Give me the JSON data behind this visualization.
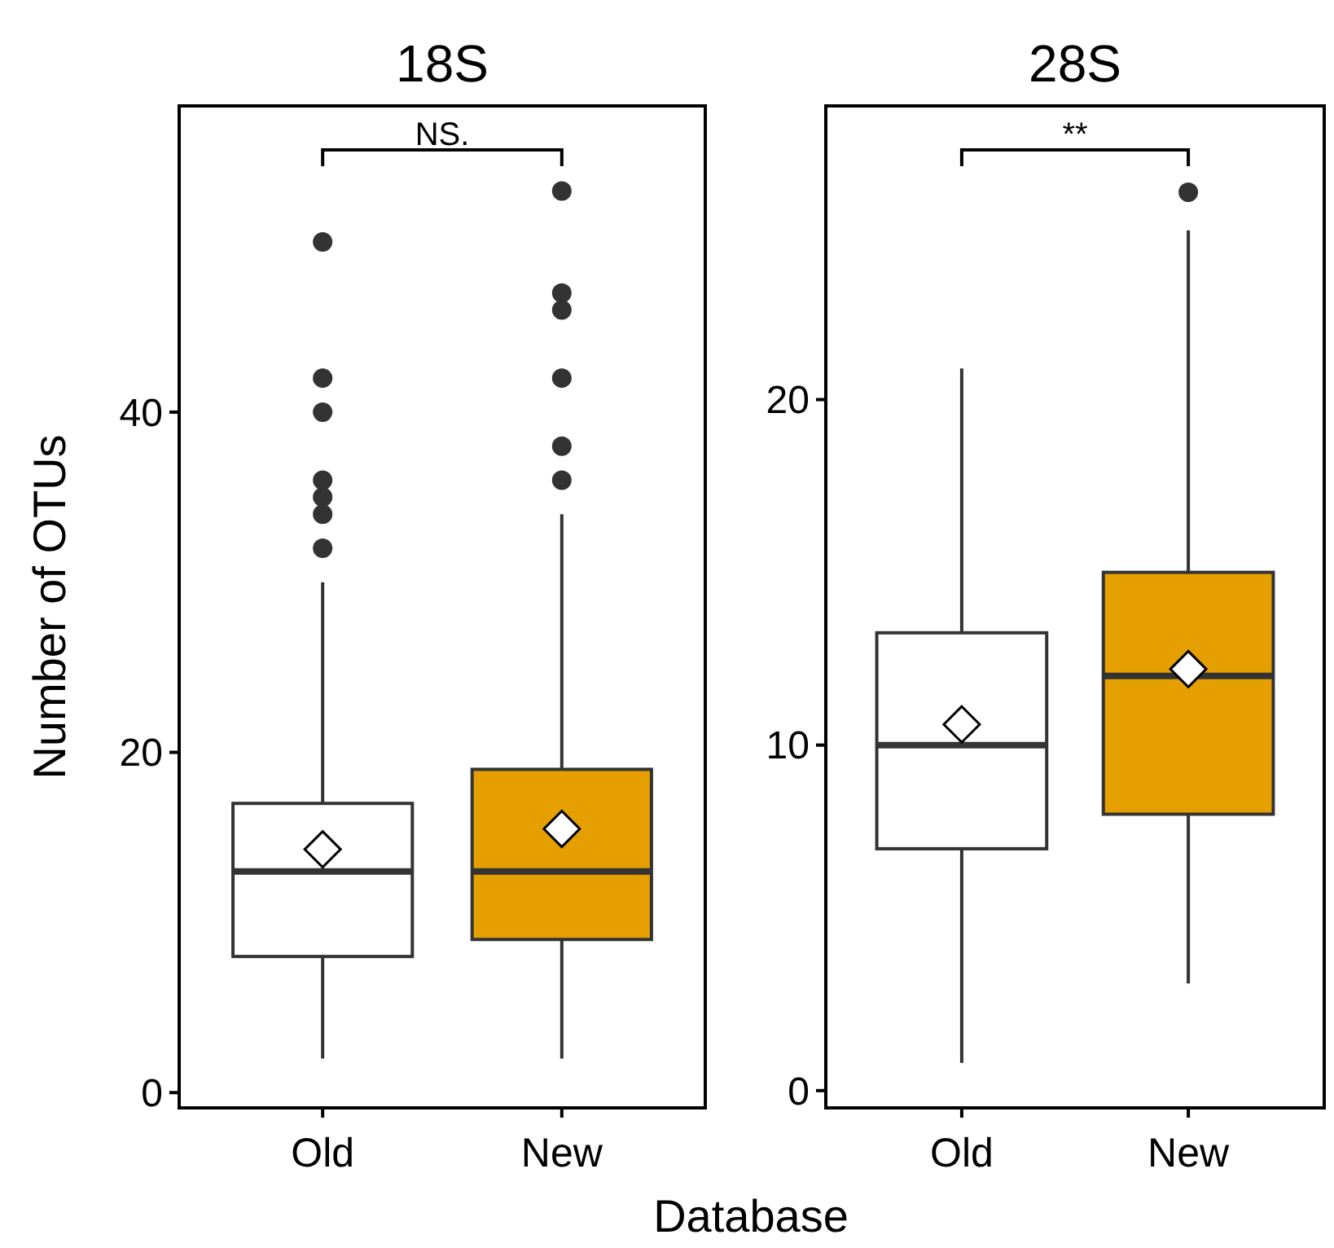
{
  "chart_data": [
    {
      "type": "box",
      "title": "18S",
      "ylabel": "Number of OTUs",
      "xlabel": "Database",
      "categories": [
        "Old",
        "New"
      ],
      "colors": [
        "#ffffff",
        "#e69f00"
      ],
      "ylim": [
        -0.9,
        58
      ],
      "yticks": [
        0,
        20,
        40
      ],
      "annotations": [
        "NS."
      ],
      "boxes": [
        {
          "low": 2,
          "q1": 8,
          "median": 13,
          "q3": 17,
          "high": 30,
          "mean": 14.3,
          "outliers": [
            50,
            42,
            40,
            36,
            35,
            34,
            32
          ]
        },
        {
          "low": 2,
          "q1": 9,
          "median": 13,
          "q3": 19,
          "high": 34,
          "mean": 15.5,
          "outliers": [
            53,
            47,
            46,
            42,
            38,
            36
          ]
        }
      ]
    },
    {
      "type": "box",
      "title": "28S",
      "categories": [
        "Old",
        "New"
      ],
      "colors": [
        "#ffffff",
        "#e69f00"
      ],
      "ylim": [
        -0.5,
        28.5
      ],
      "yticks": [
        0,
        10,
        20
      ],
      "annotations": [
        "**"
      ],
      "boxes": [
        {
          "low": 0.8,
          "q1": 7,
          "median": 10,
          "q3": 13.25,
          "high": 20.9,
          "mean": 10.6
        },
        {
          "low": 3.1,
          "q1": 8,
          "median": 12,
          "q3": 15,
          "high": 24.9,
          "mean": 12.2,
          "outliers": [
            26
          ]
        }
      ]
    }
  ]
}
